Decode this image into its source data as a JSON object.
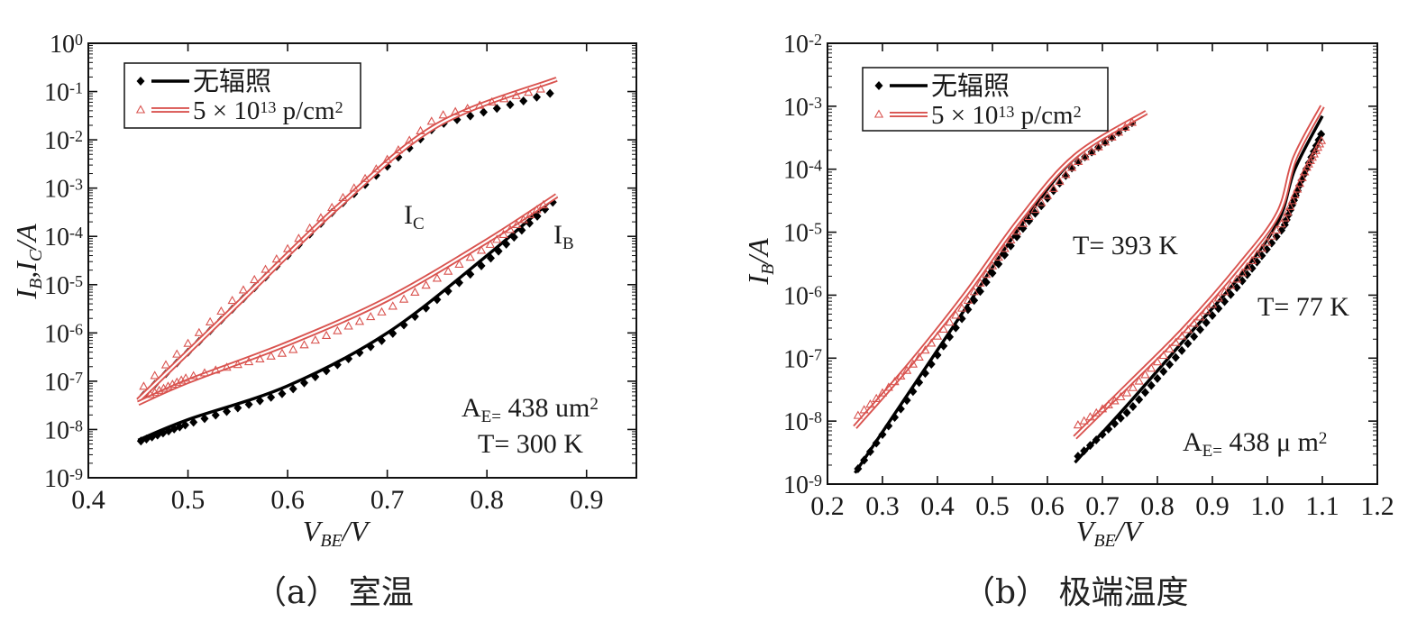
{
  "chart_data": [
    {
      "type": "line",
      "panel": "a",
      "caption": "（a） 室温",
      "title": "",
      "xlabel": "V_BE/V",
      "ylabel": "I_B,I_C/A",
      "x_scale": "linear",
      "y_scale": "log",
      "xlim": [
        0.4,
        0.95
      ],
      "ylim": [
        1e-09,
        1
      ],
      "x_ticks": [
        0.4,
        0.5,
        0.6,
        0.7,
        0.8,
        0.9
      ],
      "y_tick_exponents": [
        0,
        -1,
        -2,
        -3,
        -4,
        -5,
        -6,
        -7,
        -8,
        -9
      ],
      "legend": {
        "position": "top-left",
        "entries": [
          {
            "text": "无辐照",
            "marker": "diamond",
            "color": "#000000"
          },
          {
            "text": "5 × 10^13 p/cm^2",
            "marker": "triangle-open",
            "color": "#d9534f"
          }
        ]
      },
      "annotations": [
        {
          "text": "I_C",
          "x": 0.72,
          "y": 0.0002
        },
        {
          "text": "I_B",
          "x": 0.87,
          "y": 9e-05
        },
        {
          "text": "A_E= 438 um^2",
          "x": 0.85,
          "y": 2e-08
        },
        {
          "text": "T= 300 K",
          "x": 0.85,
          "y": 4e-09
        }
      ],
      "series": [
        {
          "name": "无辐照",
          "curve": "I_C",
          "style": "line",
          "color": "#000000",
          "x": [
            0.45,
            0.55,
            0.65,
            0.75,
            0.87
          ],
          "y": [
            4e-08,
            4e-06,
            0.0004,
            0.02,
            0.18
          ]
        },
        {
          "name": "无辐照",
          "curve": "I_C",
          "style": "diamond",
          "color": "#000000",
          "x": [
            0.45,
            0.55,
            0.65,
            0.75,
            0.87
          ],
          "y": [
            4e-08,
            4e-06,
            0.0004,
            0.02,
            0.1
          ]
        },
        {
          "name": "5 × 10^13 p/cm^2",
          "curve": "I_C",
          "style": "double-line",
          "color": "#d9534f",
          "x": [
            0.45,
            0.55,
            0.65,
            0.75,
            0.87
          ],
          "y": [
            4e-08,
            4e-06,
            0.0004,
            0.02,
            0.18
          ]
        },
        {
          "name": "5 × 10^13 p/cm^2",
          "curve": "I_C",
          "style": "triangle-open",
          "color": "#d9534f",
          "x": [
            0.45,
            0.55,
            0.65,
            0.75,
            0.86
          ],
          "y": [
            6e-08,
            6e-06,
            0.0005,
            0.03,
            0.12
          ]
        },
        {
          "name": "无辐照",
          "curve": "I_B",
          "style": "line",
          "color": "#000000",
          "x": [
            0.45,
            0.5,
            0.6,
            0.7,
            0.8,
            0.87
          ],
          "y": [
            6e-09,
            1.6e-08,
            8e-08,
            1e-06,
            4e-05,
            0.0007
          ]
        },
        {
          "name": "无辐照",
          "curve": "I_B",
          "style": "diamond",
          "color": "#000000",
          "x": [
            0.45,
            0.5,
            0.6,
            0.7,
            0.8,
            0.87
          ],
          "y": [
            5.5e-09,
            1.3e-08,
            6e-08,
            8e-07,
            3e-05,
            0.0006
          ]
        },
        {
          "name": "5 × 10^13 p/cm^2",
          "curve": "I_B",
          "style": "double-line",
          "color": "#d9534f",
          "x": [
            0.45,
            0.5,
            0.6,
            0.7,
            0.8,
            0.87
          ],
          "y": [
            3.5e-08,
            1e-07,
            6e-07,
            5e-06,
            8e-05,
            0.0007
          ]
        },
        {
          "name": "5 × 10^13 p/cm^2",
          "curve": "I_B",
          "style": "triangle-open",
          "color": "#d9534f",
          "x": [
            0.46,
            0.5,
            0.6,
            0.7,
            0.8,
            0.86
          ],
          "y": [
            5e-08,
            1.2e-07,
            4e-07,
            3e-06,
            6e-05,
            0.0005
          ]
        }
      ]
    },
    {
      "type": "line",
      "panel": "b",
      "caption": "（b） 极端温度",
      "title": "",
      "xlabel": "V_BE/V",
      "ylabel": "I_B/A",
      "x_scale": "linear",
      "y_scale": "log",
      "xlim": [
        0.2,
        1.2
      ],
      "ylim": [
        1e-09,
        0.01
      ],
      "x_ticks": [
        0.2,
        0.3,
        0.4,
        0.5,
        0.6,
        0.7,
        0.8,
        0.9,
        1.0,
        1.1,
        1.2
      ],
      "y_tick_exponents": [
        -2,
        -3,
        -4,
        -5,
        -6,
        -7,
        -8,
        -9
      ],
      "legend": {
        "position": "top-left",
        "entries": [
          {
            "text": "无辐照",
            "marker": "diamond",
            "color": "#000000"
          },
          {
            "text": "5 × 10^13 p/cm^2",
            "marker": "triangle-open",
            "color": "#d9534f"
          }
        ]
      },
      "annotations": [
        {
          "text": "T= 393 K",
          "x": 0.65,
          "y": 8e-06
        },
        {
          "text": "T= 77 K",
          "x": 0.99,
          "y": 1e-06
        },
        {
          "text": "A_E= 438 μ m^2",
          "x": 0.97,
          "y": 4e-09
        }
      ],
      "series": [
        {
          "name": "无辐照",
          "curve": "T=393K",
          "style": "line",
          "color": "#000000",
          "x": [
            0.25,
            0.35,
            0.45,
            0.55,
            0.65,
            0.78
          ],
          "y": [
            1.5e-09,
            3e-08,
            6e-07,
            1.2e-05,
            0.00015,
            0.0008
          ]
        },
        {
          "name": "无辐照",
          "curve": "T=393K",
          "style": "diamond",
          "color": "#000000",
          "x": [
            0.25,
            0.35,
            0.45,
            0.55,
            0.65,
            0.76
          ],
          "y": [
            1.5e-09,
            2.5e-08,
            5e-07,
            1e-05,
            0.00012,
            0.0006
          ]
        },
        {
          "name": "5 × 10^13 p/cm^2",
          "curve": "T=393K",
          "style": "double-line",
          "color": "#d9534f",
          "x": [
            0.25,
            0.35,
            0.45,
            0.55,
            0.65,
            0.78
          ],
          "y": [
            8e-09,
            8e-08,
            1e-06,
            1.6e-05,
            0.00016,
            0.0008
          ]
        },
        {
          "name": "5 × 10^13 p/cm^2",
          "curve": "T=393K",
          "style": "triangle-open",
          "color": "#d9534f",
          "x": [
            0.25,
            0.35,
            0.45,
            0.55,
            0.65,
            0.76
          ],
          "y": [
            1.1e-08,
            7e-08,
            7e-07,
            1.2e-05,
            0.00012,
            0.0006
          ]
        },
        {
          "name": "无辐照",
          "curve": "T=77K",
          "style": "line",
          "color": "#000000",
          "x": [
            0.65,
            0.75,
            0.85,
            0.95,
            1.02,
            1.05,
            1.1
          ],
          "y": [
            2.2e-09,
            2e-08,
            2e-07,
            2e-06,
            1.5e-05,
            0.0001,
            0.0007
          ]
        },
        {
          "name": "无辐照",
          "curve": "T=77K",
          "style": "diamond",
          "color": "#000000",
          "x": [
            0.65,
            0.75,
            0.85,
            0.95,
            1.03,
            1.06,
            1.1
          ],
          "y": [
            2.5e-09,
            1.5e-08,
            1.5e-07,
            1.5e-06,
            1.2e-05,
            6e-05,
            0.0004
          ]
        },
        {
          "name": "5 × 10^13 p/cm^2",
          "curve": "T=77K",
          "style": "double-line",
          "color": "#d9534f",
          "x": [
            0.65,
            0.75,
            0.85,
            0.95,
            1.02,
            1.05,
            1.1
          ],
          "y": [
            5.5e-09,
            4e-08,
            3e-07,
            3e-06,
            2e-05,
            0.00015,
            0.001
          ]
        },
        {
          "name": "5 × 10^13 p/cm^2",
          "curve": "T=77K",
          "style": "triangle-open",
          "color": "#d9534f",
          "x": [
            0.65,
            0.75,
            0.85,
            0.95,
            1.03,
            1.07,
            1.1
          ],
          "y": [
            8e-09,
            3e-08,
            2.5e-07,
            2e-06,
            1.5e-05,
            0.0001,
            0.0003
          ]
        }
      ]
    }
  ]
}
